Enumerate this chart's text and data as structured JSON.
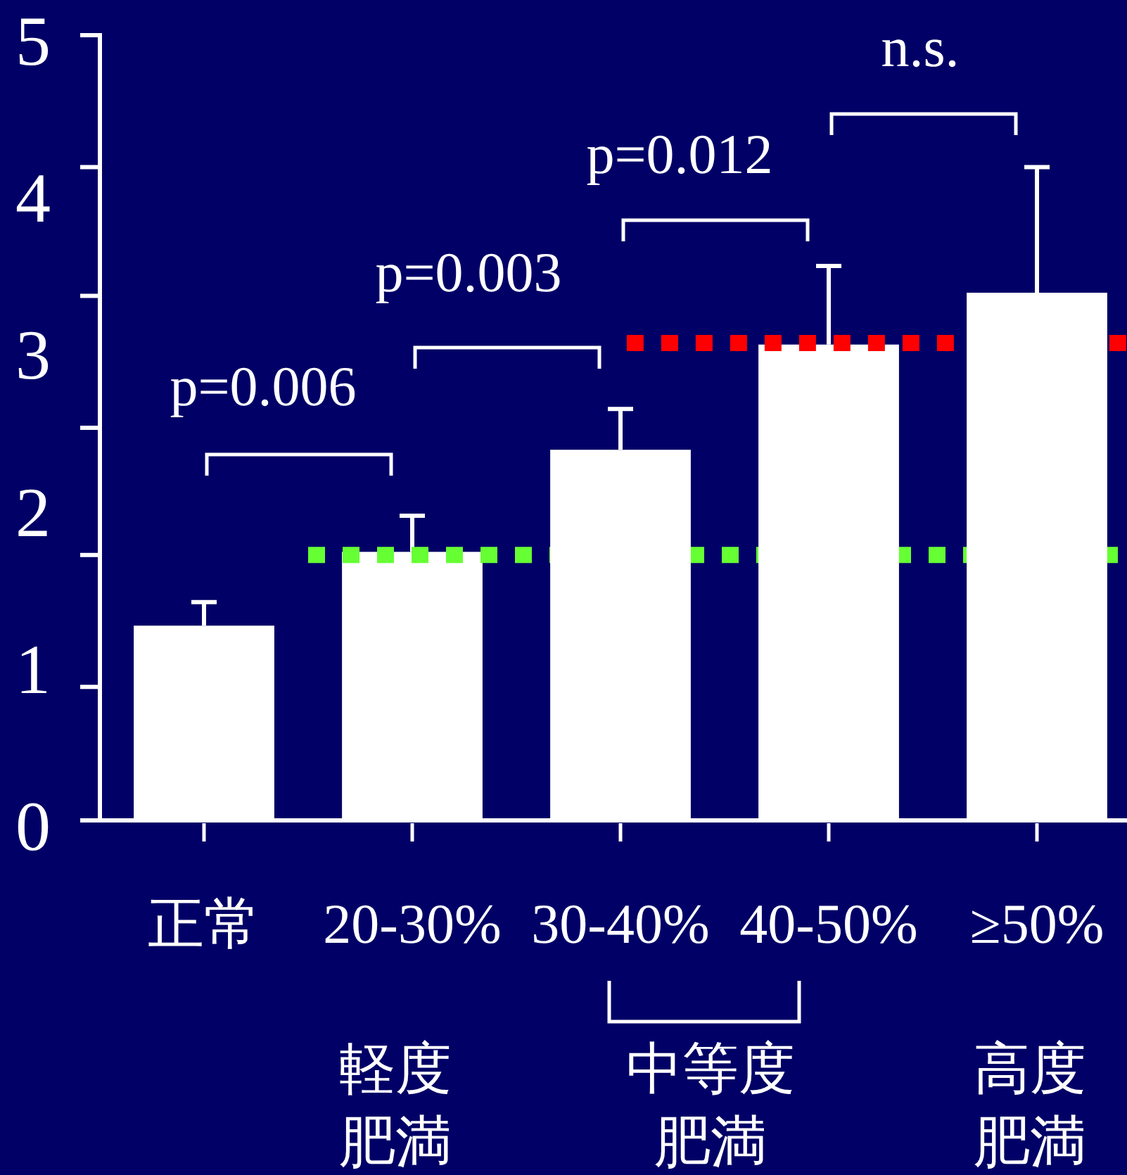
{
  "chart_data": {
    "type": "bar",
    "categories": [
      "正常",
      "20-30%",
      "30-40%",
      "40-50%",
      "≥50%"
    ],
    "values": [
      1.24,
      1.71,
      2.36,
      3.03,
      3.36
    ],
    "color": "#ffffff",
    "errors": [
      [
        1.24,
        1.39
      ],
      [
        1.71,
        1.94
      ],
      [
        2.36,
        2.62
      ],
      [
        3.03,
        3.53
      ],
      [
        3.36,
        4.16
      ]
    ],
    "ylim": [
      0,
      5
    ],
    "yticks": [
      0,
      {
        "value": 0.85,
        "label": null
      },
      1,
      {
        "value": 1.69,
        "label": null
      },
      2,
      {
        "value": 2.5,
        "label": null
      },
      3,
      {
        "value": 3.34,
        "label": null
      },
      4,
      {
        "value": 4.16,
        "label": null
      },
      5
    ],
    "ref_lines": [
      {
        "axis": "y",
        "value": 1.69,
        "label": null,
        "color": "#66ff33",
        "line_style": "dotted"
      },
      {
        "axis": "y",
        "value": 3.04,
        "label": null,
        "color": "#ff0000",
        "line_style": "dotted"
      }
    ],
    "annotations": [
      "p=0.006",
      "p=0.003",
      "p=0.012",
      "n.s.",
      "軽度肥満",
      "中等度肥満",
      "高度肥満"
    ]
  }
}
